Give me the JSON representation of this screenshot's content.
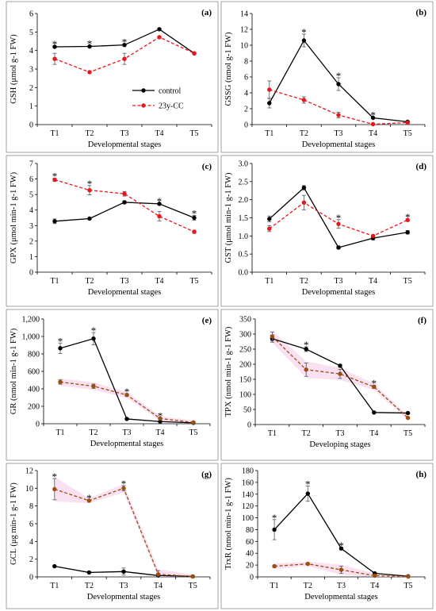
{
  "chart_data": [
    {
      "panel": "(a)",
      "type": "line",
      "categories": [
        "T1",
        "T2",
        "T3",
        "T4",
        "T5"
      ],
      "xlabel": "Developmental stages",
      "ylabel": "GSH (μmol g-1 FW)",
      "ylim": [
        0,
        6
      ],
      "yticks": [
        "0",
        "1",
        "2",
        "3",
        "4",
        "5",
        "6"
      ],
      "series": [
        {
          "name": "control",
          "values": [
            4.2,
            4.22,
            4.3,
            5.15,
            3.85
          ],
          "errors": [
            0.05,
            0.05,
            0.06,
            0.06,
            0.05
          ]
        },
        {
          "name": "23y-CC",
          "values": [
            3.55,
            2.83,
            3.55,
            4.72,
            3.85
          ],
          "errors": [
            0.3,
            0.05,
            0.3,
            0.05,
            0.05
          ]
        }
      ],
      "significant": [
        true,
        true,
        true,
        false,
        false
      ],
      "legend": "center-right"
    },
    {
      "panel": "(b)",
      "type": "line",
      "categories": [
        "T1",
        "T2",
        "T3",
        "T4",
        "T5"
      ],
      "xlabel": "Developmental stages",
      "ylabel": "GSSG (nmol g-1 FW)",
      "ylim": [
        0,
        14
      ],
      "yticks": [
        "0",
        "2",
        "4",
        "6",
        "8",
        "10",
        "12",
        "14"
      ],
      "series": [
        {
          "name": "control",
          "values": [
            2.7,
            10.6,
            5.1,
            0.85,
            0.35
          ],
          "errors": [
            0.6,
            0.8,
            0.8,
            0.1,
            0.1
          ]
        },
        {
          "name": "23y-CC",
          "values": [
            4.4,
            3.1,
            1.2,
            0.05,
            0.25
          ],
          "errors": [
            1.1,
            0.4,
            0.35,
            0.05,
            0.05
          ]
        }
      ],
      "significant": [
        false,
        true,
        true,
        true,
        false
      ]
    },
    {
      "panel": "(c)",
      "type": "line",
      "categories": [
        "T1",
        "T2",
        "T3",
        "T4",
        "T5"
      ],
      "xlabel": "Developmental stages",
      "ylabel": "GPX (μmol min-1 g-1 FW)",
      "ylim": [
        0,
        7
      ],
      "yticks": [
        "0",
        "1",
        "2",
        "3",
        "4",
        "5",
        "6",
        "7"
      ],
      "series": [
        {
          "name": "control",
          "values": [
            3.28,
            3.45,
            4.5,
            4.4,
            3.5
          ],
          "errors": [
            0.15,
            0.05,
            0.1,
            0.05,
            0.15
          ]
        },
        {
          "name": "23y-CC",
          "values": [
            5.95,
            5.28,
            5.05,
            3.6,
            2.6
          ],
          "errors": [
            0.1,
            0.3,
            0.15,
            0.3,
            0.1
          ]
        }
      ],
      "significant": [
        true,
        true,
        false,
        true,
        true
      ]
    },
    {
      "panel": "(d)",
      "type": "line",
      "categories": [
        "T1",
        "T2",
        "T3",
        "T4",
        "T5"
      ],
      "xlabel": "Developmental stages",
      "ylabel": "GST (μmol min-1 g-1 FW)",
      "ylim": [
        0,
        3
      ],
      "yticks": [
        "0.0",
        "0.5",
        "1.0",
        "1.5",
        "2.0",
        "2.5",
        "3.0"
      ],
      "series": [
        {
          "name": "control",
          "values": [
            1.47,
            2.33,
            0.68,
            0.94,
            1.1
          ],
          "errors": [
            0.08,
            0.06,
            0.04,
            0.05,
            0.05
          ]
        },
        {
          "name": "23y-CC",
          "values": [
            1.2,
            1.92,
            1.33,
            1.0,
            1.44
          ],
          "errors": [
            0.08,
            0.2,
            0.12,
            0.03,
            0.03
          ]
        }
      ],
      "significant": [
        false,
        false,
        true,
        false,
        true
      ]
    },
    {
      "panel": "(e)",
      "type": "line",
      "categories": [
        "T1",
        "T2",
        "T3",
        "T4",
        "T5"
      ],
      "xlabel": "Developmental stages",
      "ylabel": "GR (nmol min-1 g-1 FW)",
      "ylim": [
        0,
        1200
      ],
      "yticks": [
        "0",
        "200",
        "400",
        "600",
        "800",
        "1,000",
        "1,200"
      ],
      "series": [
        {
          "name": "control",
          "values": [
            865,
            975,
            55,
            25,
            10
          ],
          "errors": [
            60,
            70,
            5,
            5,
            5
          ]
        },
        {
          "name": "23y-CC",
          "values": [
            478,
            430,
            330,
            60,
            15
          ],
          "errors": [
            25,
            25,
            15,
            10,
            5
          ]
        }
      ],
      "significant": [
        true,
        true,
        true,
        true,
        false
      ]
    },
    {
      "panel": "(f)",
      "type": "line",
      "categories": [
        "T1",
        "T2",
        "T3",
        "T4",
        "T5"
      ],
      "xlabel": "Developing stages",
      "ylabel": "TPX (nmol min-1 g-1 FW)",
      "ylim": [
        0,
        350
      ],
      "yticks": [
        "0",
        "50",
        "100",
        "150",
        "200",
        "250",
        "300",
        "350"
      ],
      "series": [
        {
          "name": "control",
          "values": [
            285,
            250,
            195,
            40,
            38
          ],
          "errors": [
            12,
            8,
            5,
            2,
            2
          ]
        },
        {
          "name": "23y-CC",
          "values": [
            292,
            182,
            168,
            125,
            22
          ],
          "errors": [
            15,
            22,
            15,
            5,
            2
          ]
        }
      ],
      "significant": [
        false,
        true,
        false,
        true,
        false
      ]
    },
    {
      "panel": "(g)",
      "type": "line",
      "categories": [
        "T1",
        "T2",
        "T3",
        "T4",
        "T5"
      ],
      "xlabel": "Developmental stages",
      "ylabel": "GCL (μg min-1 g-1 FW)",
      "ylim": [
        0,
        12
      ],
      "yticks": [
        "0",
        "2",
        "4",
        "6",
        "8",
        "10",
        "12"
      ],
      "series": [
        {
          "name": "control",
          "values": [
            1.2,
            0.5,
            0.6,
            0.15,
            0.05
          ],
          "errors": [
            0.05,
            0.05,
            0.4,
            0.05,
            0.02
          ]
        },
        {
          "name": "23y-CC",
          "values": [
            9.9,
            8.6,
            10.0,
            0.3,
            0.05
          ],
          "errors": [
            1.2,
            0.1,
            0.3,
            0.4,
            0.02
          ]
        }
      ],
      "significant": [
        true,
        true,
        true,
        false,
        false
      ]
    },
    {
      "panel": "(h)",
      "type": "line",
      "categories": [
        "T1",
        "T2",
        "T3",
        "T4",
        "T5"
      ],
      "xlabel": "Developmental stages",
      "ylabel": "TrxR (nmol min-1 g-1 FW)",
      "ylim": [
        0,
        180
      ],
      "yticks": [
        "0",
        "20",
        "40",
        "60",
        "80",
        "100",
        "120",
        "140",
        "160",
        "180"
      ],
      "series": [
        {
          "name": "control",
          "values": [
            80,
            141,
            48,
            6,
            1
          ],
          "errors": [
            17,
            13,
            2,
            1,
            0.5
          ]
        },
        {
          "name": "23y-CC",
          "values": [
            18,
            22,
            12,
            2,
            0.5
          ],
          "errors": [
            2,
            1,
            6,
            1,
            0.3
          ]
        }
      ],
      "significant": [
        true,
        true,
        true,
        false,
        false
      ]
    }
  ],
  "colors": {
    "control": "#000000",
    "treatment_red": "#e8161c",
    "treatment_brown": "#9b4d14",
    "shade": "#f7d9ef"
  }
}
